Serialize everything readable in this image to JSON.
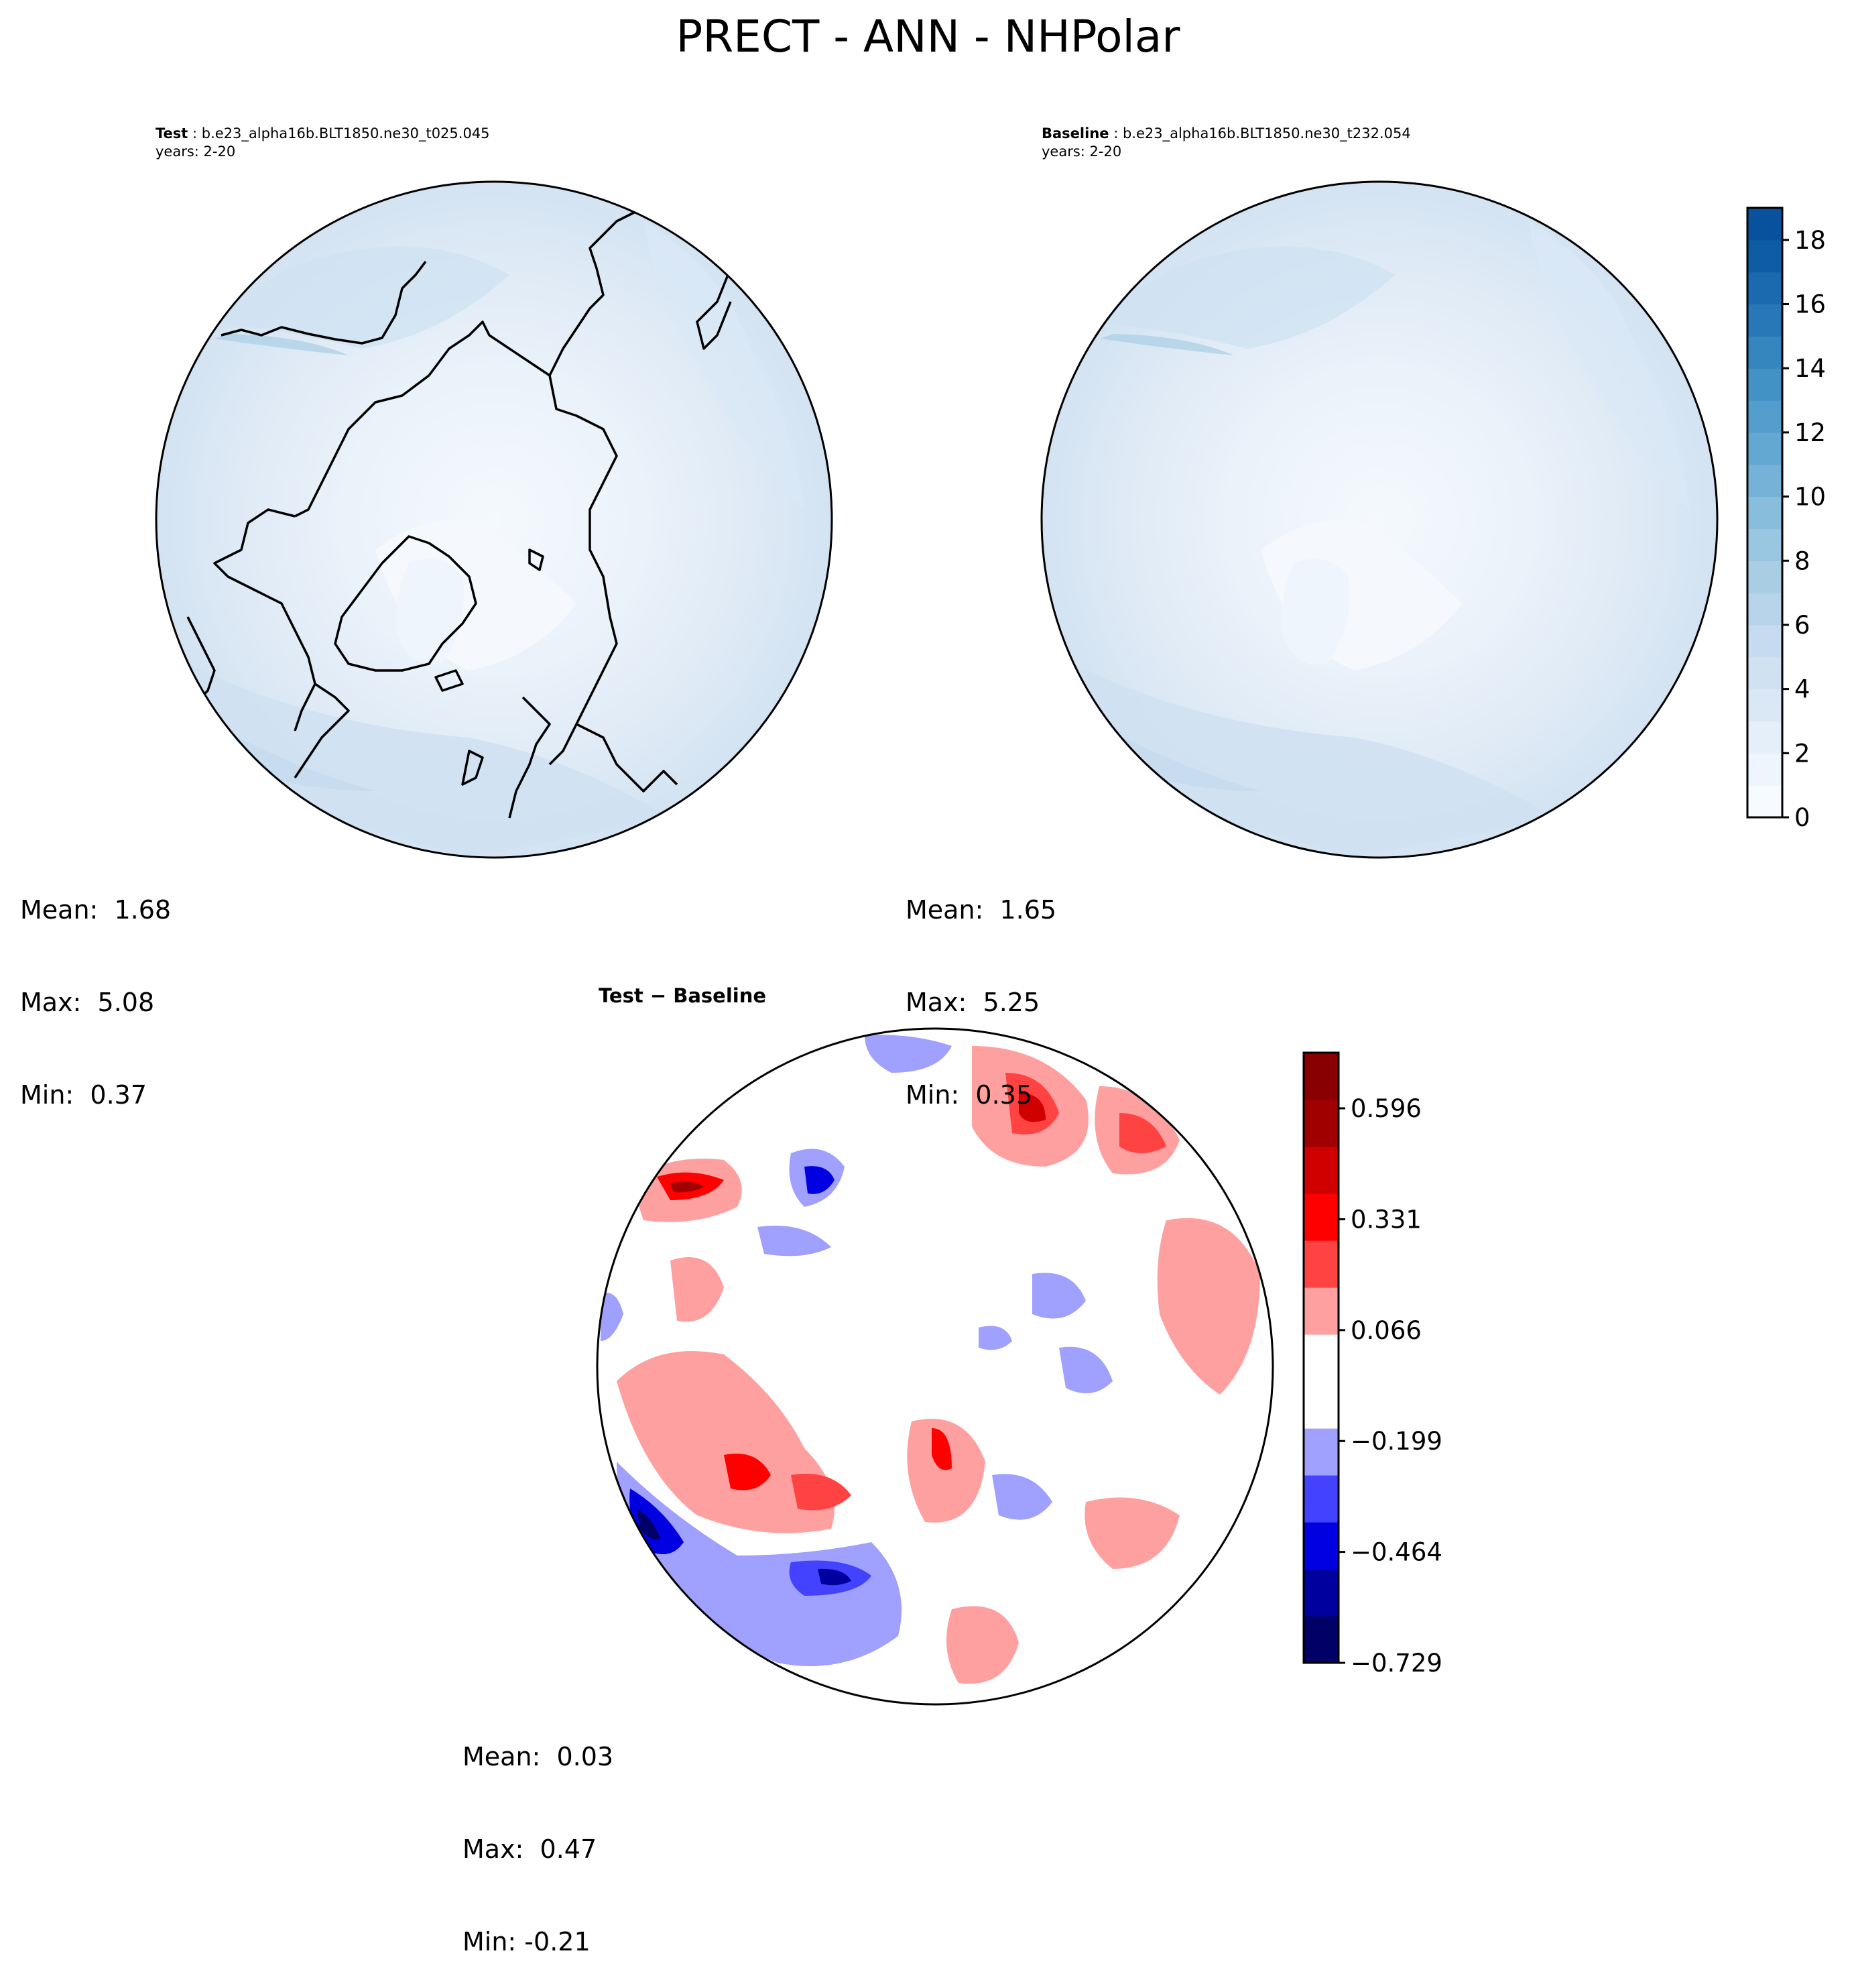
{
  "title": "PRECT - ANN - NHPolar",
  "colors": {
    "ocean_light": "#e6f0f9",
    "ocean_mid": "#d7e6f4",
    "ocean_band": "#c6dbef",
    "land_white": "#f3f8fd",
    "coast": "#000000",
    "diff_white": "#ffffff"
  },
  "chart_data": [
    {
      "type": "heatmap",
      "projection": "north-polar-stereographic",
      "label": "Test",
      "case": "b.e23_alpha16b.BLT1850.ne30_t025.045",
      "years": "years: 2-20",
      "stats": {
        "mean": "Mean:  1.68",
        "max": "Max:  5.08",
        "min": "Min:  0.37"
      }
    },
    {
      "type": "heatmap",
      "projection": "north-polar-stereographic",
      "label": "Baseline",
      "case": "b.e23_alpha16b.BLT1850.ne30_t232.054",
      "years": "years: 2-20",
      "stats": {
        "mean": "Mean:  1.65",
        "max": "Max:  5.25",
        "min": "Min:  0.35"
      },
      "colorbar": {
        "vmin": 0,
        "vmax": 19,
        "levels": 19,
        "ticks": [
          "0",
          "2",
          "4",
          "6",
          "8",
          "10",
          "12",
          "14",
          "16",
          "18"
        ],
        "tick_values": [
          0,
          2,
          4,
          6,
          8,
          10,
          12,
          14,
          16,
          18
        ],
        "colormap": [
          "#f7fbff",
          "#eef5fc",
          "#e4eff9",
          "#dae8f6",
          "#d0e2f2",
          "#c6dbef",
          "#b8d4ea",
          "#a9cee4",
          "#99c6e0",
          "#88bedc",
          "#76b2d8",
          "#63a8d3",
          "#539ecd",
          "#4292c6",
          "#3585bf",
          "#2878b8",
          "#1b6aaf",
          "#0e5ca4",
          "#08519c"
        ]
      }
    },
    {
      "type": "heatmap",
      "projection": "north-polar-stereographic",
      "label": "Test − Baseline",
      "stats": {
        "mean": "Mean:  0.03",
        "max": "Max:  0.47",
        "min": "Min: -0.21"
      },
      "colorbar": {
        "vmin": -0.729,
        "vmax": 0.729,
        "ticks": [
          "0.596",
          "0.331",
          "0.066",
          "−0.199",
          "−0.464",
          "−0.729"
        ],
        "tick_values": [
          0.596,
          0.331,
          0.066,
          -0.199,
          -0.464,
          -0.729
        ],
        "colormap": [
          "#000066",
          "#00009e",
          "#0000e0",
          "#4242ff",
          "#a0a0ff",
          "#ffffff",
          "#ffffff",
          "#ffa0a0",
          "#ff4242",
          "#ff0000",
          "#d00000",
          "#a00000",
          "#880000"
        ]
      }
    }
  ]
}
